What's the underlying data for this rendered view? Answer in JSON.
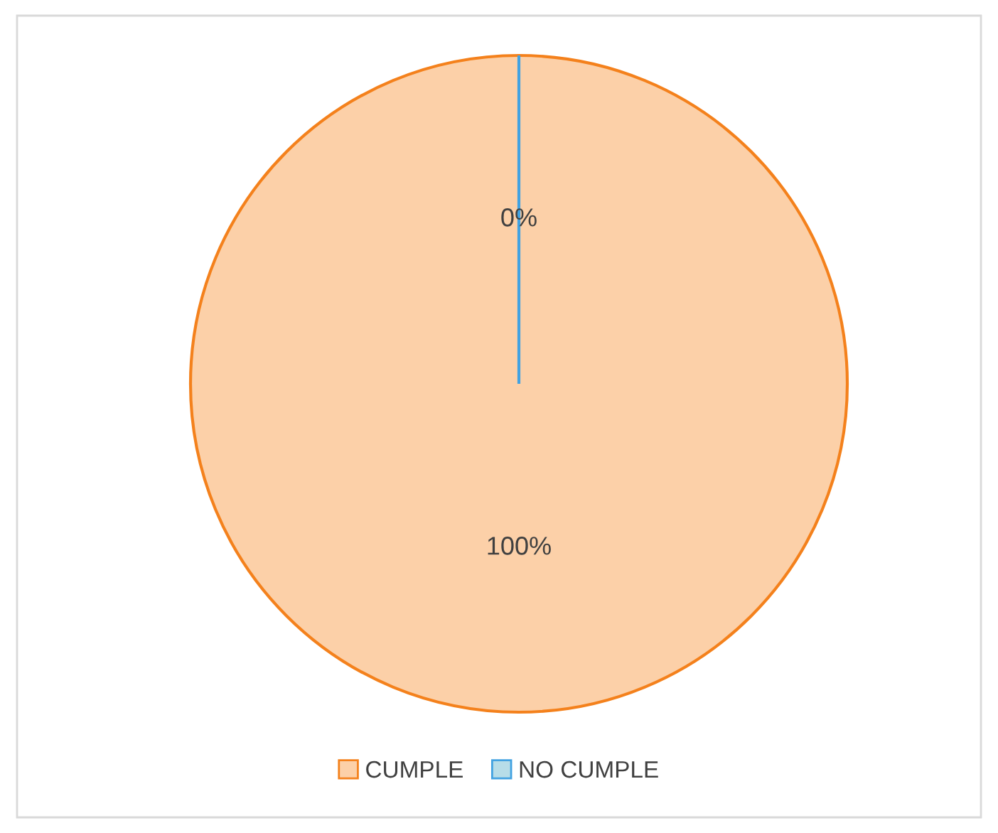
{
  "chart_data": {
    "type": "pie",
    "categories": [
      "CUMPLE",
      "NO CUMPLE"
    ],
    "values": [
      100,
      0
    ],
    "colors": [
      "#fcd0a8",
      "#b7dde8"
    ],
    "value_labels": [
      "100%",
      "0%"
    ],
    "legend": "bottom"
  }
}
